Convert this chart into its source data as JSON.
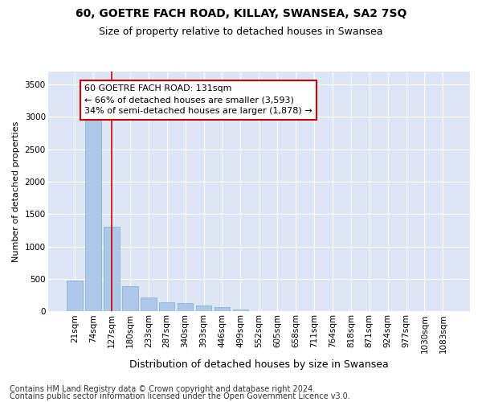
{
  "title": "60, GOETRE FACH ROAD, KILLAY, SWANSEA, SA2 7SQ",
  "subtitle": "Size of property relative to detached houses in Swansea",
  "xlabel": "Distribution of detached houses by size in Swansea",
  "ylabel": "Number of detached properties",
  "bar_color": "#aec6e8",
  "bar_edgecolor": "#7aafd4",
  "vline_color": "#cc0000",
  "vline_x_index": 2,
  "annotation_text": "60 GOETRE FACH ROAD: 131sqm\n← 66% of detached houses are smaller (3,593)\n34% of semi-detached houses are larger (1,878) →",
  "annotation_box_edgecolor": "#cc0000",
  "categories": [
    "21sqm",
    "74sqm",
    "127sqm",
    "180sqm",
    "233sqm",
    "287sqm",
    "340sqm",
    "393sqm",
    "446sqm",
    "499sqm",
    "552sqm",
    "605sqm",
    "658sqm",
    "711sqm",
    "764sqm",
    "818sqm",
    "871sqm",
    "924sqm",
    "977sqm",
    "1030sqm",
    "1083sqm"
  ],
  "values": [
    480,
    3050,
    1310,
    390,
    220,
    145,
    130,
    85,
    60,
    30,
    0,
    0,
    0,
    0,
    0,
    0,
    0,
    0,
    0,
    0,
    0
  ],
  "ylim": [
    0,
    3700
  ],
  "yticks": [
    0,
    500,
    1000,
    1500,
    2000,
    2500,
    3000,
    3500
  ],
  "fig_background_color": "#ffffff",
  "ax_background_color": "#dce6f5",
  "grid_color": "#ffffff",
  "footer_line1": "Contains HM Land Registry data © Crown copyright and database right 2024.",
  "footer_line2": "Contains public sector information licensed under the Open Government Licence v3.0.",
  "title_fontsize": 10,
  "subtitle_fontsize": 9,
  "xlabel_fontsize": 9,
  "ylabel_fontsize": 8,
  "tick_fontsize": 7.5,
  "annotation_fontsize": 8,
  "footer_fontsize": 7
}
